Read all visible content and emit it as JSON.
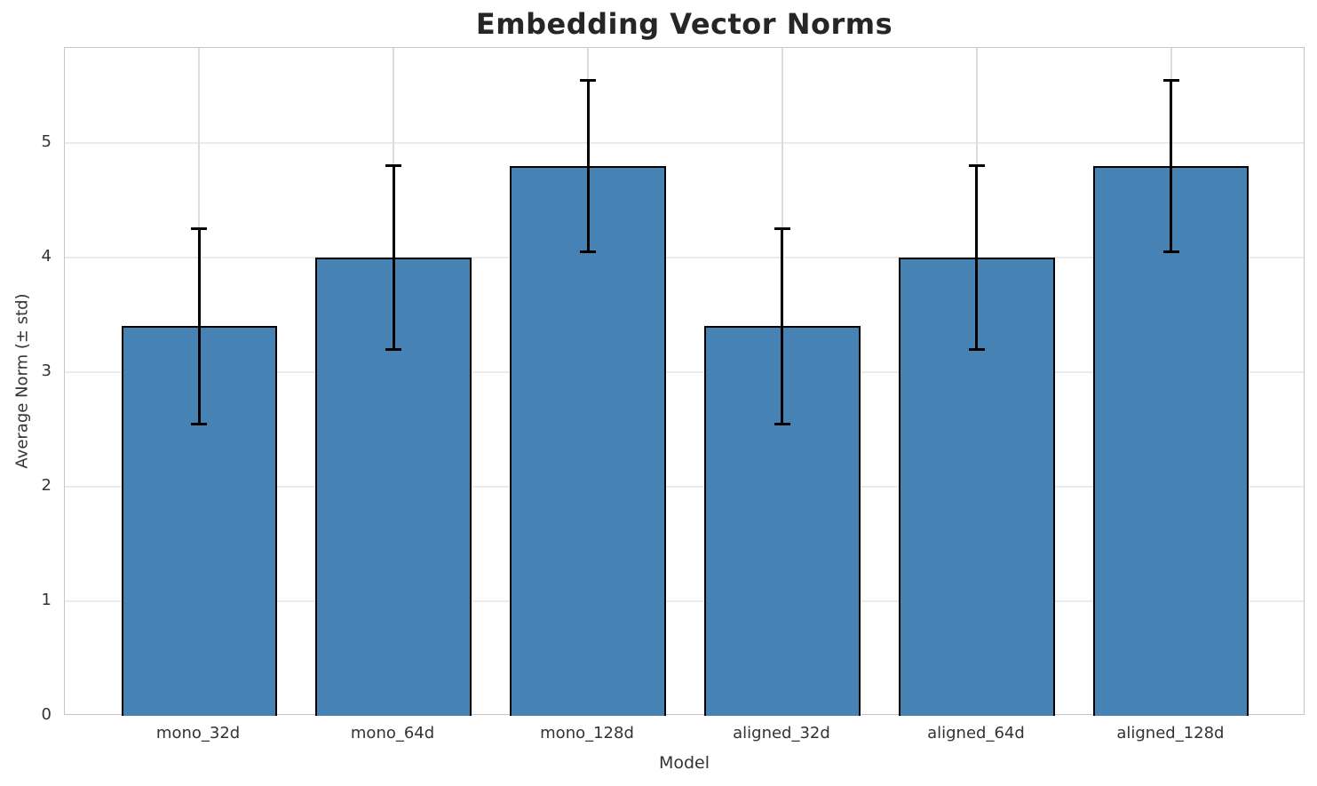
{
  "chart_data": {
    "type": "bar",
    "title": "Embedding Vector Norms",
    "xlabel": "Model",
    "ylabel": "Average Norm (± std)",
    "categories": [
      "mono_32d",
      "mono_64d",
      "mono_128d",
      "aligned_32d",
      "aligned_64d",
      "aligned_128d"
    ],
    "values": [
      3.4,
      4.0,
      4.8,
      3.4,
      4.0,
      4.8
    ],
    "errors": [
      0.85,
      0.8,
      0.75,
      0.85,
      0.8,
      0.75
    ],
    "yticks": [
      0,
      1,
      2,
      3,
      4,
      5
    ],
    "ylim": [
      0,
      5.83
    ],
    "xlim": [
      -0.69,
      5.69
    ],
    "bar_width": 0.8,
    "grid": true,
    "legend": "none",
    "colors": {
      "bar_fill": "#4682B4",
      "bar_edge": "#000000",
      "error_bar": "#000000",
      "grid_h": "#ebebeb",
      "grid_v": "#dcdcdc",
      "spine": "#c6c6c6",
      "title_text": "#262626",
      "tick_text": "#333333"
    }
  }
}
